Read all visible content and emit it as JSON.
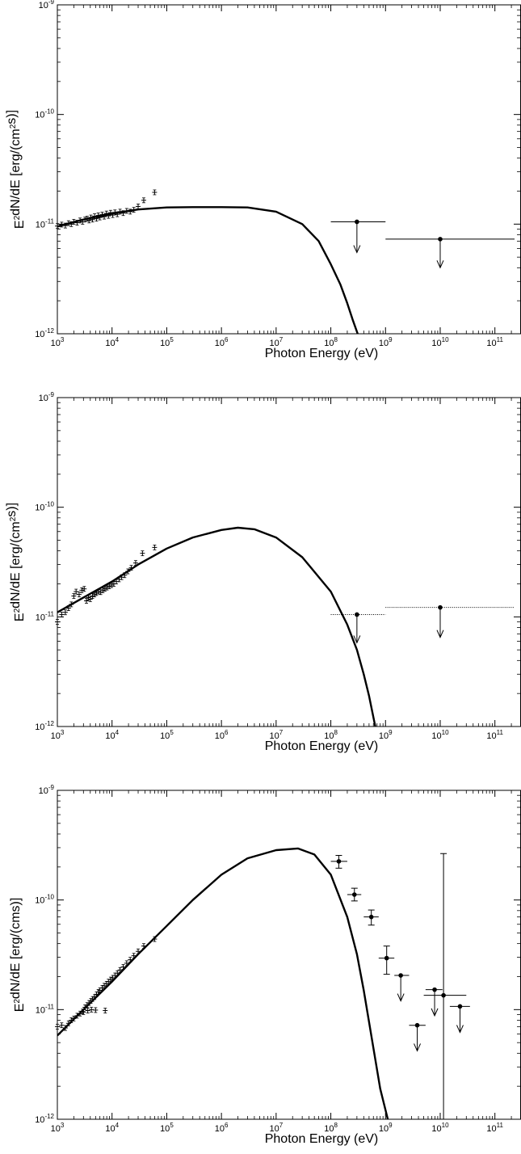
{
  "chart_data": [
    {
      "type": "scatter",
      "panel": 1,
      "xscale": "log",
      "yscale": "log",
      "xlim": [
        1000,
        300000000000
      ],
      "ylim": [
        1e-12,
        1e-09
      ],
      "xticks": [
        1000,
        10000,
        100000,
        1000000,
        10000000,
        100000000,
        1000000000,
        10000000000,
        100000000000
      ],
      "yticks": [
        1e-12,
        1e-11,
        1e-10,
        1e-09
      ],
      "xlabel": "Photon Energy (eV)",
      "ylabel": "E²dN/dE [erg/(cm²s)]",
      "model_curve": [
        [
          1000,
          9.5e-12
        ],
        [
          3000,
          1.1e-11
        ],
        [
          10000,
          1.25e-11
        ],
        [
          30000,
          1.36e-11
        ],
        [
          100000,
          1.42e-11
        ],
        [
          300000,
          1.43e-11
        ],
        [
          1000000,
          1.43e-11
        ],
        [
          3000000,
          1.42e-11
        ],
        [
          10000000,
          1.3e-11
        ],
        [
          30000000,
          1e-11
        ],
        [
          60000000,
          7e-12
        ],
        [
          100000000,
          4.3e-12
        ],
        [
          150000000,
          2.8e-12
        ],
        [
          200000000,
          1.9e-12
        ],
        [
          250000000,
          1.35e-12
        ],
        [
          310000000,
          1e-12
        ]
      ],
      "xray_points": [
        [
          1000,
          9.6e-12
        ],
        [
          1200,
          9.9e-12
        ],
        [
          1400,
          9.7e-12
        ],
        [
          1600,
          1.02e-11
        ],
        [
          1800,
          1e-11
        ],
        [
          2000,
          1.05e-11
        ],
        [
          2300,
          1.03e-11
        ],
        [
          2600,
          1.08e-11
        ],
        [
          2900,
          1.05e-11
        ],
        [
          3200,
          1.1e-11
        ],
        [
          3500,
          1.12e-11
        ],
        [
          3800,
          1.08e-11
        ],
        [
          4100,
          1.15e-11
        ],
        [
          4400,
          1.1e-11
        ],
        [
          4800,
          1.18e-11
        ],
        [
          5200,
          1.12e-11
        ],
        [
          5600,
          1.2e-11
        ],
        [
          6000,
          1.15e-11
        ],
        [
          6600,
          1.22e-11
        ],
        [
          7200,
          1.17e-11
        ],
        [
          7900,
          1.25e-11
        ],
        [
          8600,
          1.19e-11
        ],
        [
          9400,
          1.27e-11
        ],
        [
          10300,
          1.21e-11
        ],
        [
          11300,
          1.28e-11
        ],
        [
          12500,
          1.23e-11
        ],
        [
          14000,
          1.3e-11
        ],
        [
          16000,
          1.26e-11
        ],
        [
          18500,
          1.32e-11
        ],
        [
          21500,
          1.3e-11
        ],
        [
          25000,
          1.35e-11
        ],
        [
          30000,
          1.45e-11
        ],
        [
          38000,
          1.65e-11
        ],
        [
          60000,
          1.95e-11
        ]
      ],
      "upper_limits": [
        {
          "x": 300000000,
          "y": 1.05e-11,
          "xerr": [
            100000000,
            1000000000
          ],
          "arrow_to": 5.5e-12,
          "line": "solid"
        },
        {
          "x": 10000000000,
          "y": 7.3e-12,
          "xerr": [
            1000000000,
            300000000000
          ],
          "arrow_to": 4e-12,
          "line": "solid"
        }
      ]
    },
    {
      "type": "scatter",
      "panel": 2,
      "xscale": "log",
      "yscale": "log",
      "xlim": [
        1000,
        300000000000
      ],
      "ylim": [
        1e-12,
        1e-09
      ],
      "xticks": [
        1000,
        10000,
        100000,
        1000000,
        10000000,
        100000000,
        1000000000,
        10000000000,
        100000000000
      ],
      "yticks": [
        1e-12,
        1e-11,
        1e-10,
        1e-09
      ],
      "xlabel": "Photon Energy (eV)",
      "ylabel": "E²dN/dE [erg/(cm²s)]",
      "model_curve": [
        [
          1000,
          1.1e-11
        ],
        [
          3000,
          1.5e-11
        ],
        [
          10000,
          2.1e-11
        ],
        [
          30000,
          3e-11
        ],
        [
          100000,
          4.2e-11
        ],
        [
          300000,
          5.3e-11
        ],
        [
          1000000,
          6.2e-11
        ],
        [
          2000000,
          6.5e-11
        ],
        [
          4000000,
          6.3e-11
        ],
        [
          10000000,
          5.3e-11
        ],
        [
          30000000,
          3.5e-11
        ],
        [
          100000000,
          1.7e-11
        ],
        [
          200000000,
          8.5e-12
        ],
        [
          300000000,
          5e-12
        ],
        [
          400000000,
          3e-12
        ],
        [
          500000000,
          1.9e-12
        ],
        [
          650000000,
          1e-12
        ]
      ],
      "xray_points": [
        [
          1000,
          9e-12
        ],
        [
          1200,
          1.05e-11
        ],
        [
          1400,
          1.1e-11
        ],
        [
          1600,
          1.2e-11
        ],
        [
          1800,
          1.3e-11
        ],
        [
          2000,
          1.55e-11
        ],
        [
          2200,
          1.7e-11
        ],
        [
          2500,
          1.6e-11
        ],
        [
          2800,
          1.75e-11
        ],
        [
          3100,
          1.8e-11
        ],
        [
          3400,
          1.4e-11
        ],
        [
          3700,
          1.5e-11
        ],
        [
          4000,
          1.45e-11
        ],
        [
          4400,
          1.55e-11
        ],
        [
          4800,
          1.6e-11
        ],
        [
          5200,
          1.65e-11
        ],
        [
          5700,
          1.7e-11
        ],
        [
          6200,
          1.68e-11
        ],
        [
          6800,
          1.75e-11
        ],
        [
          7400,
          1.8e-11
        ],
        [
          8100,
          1.85e-11
        ],
        [
          8900,
          1.9e-11
        ],
        [
          9800,
          1.95e-11
        ],
        [
          10800,
          2e-11
        ],
        [
          12000,
          2.1e-11
        ],
        [
          13500,
          2.2e-11
        ],
        [
          15000,
          2.3e-11
        ],
        [
          17000,
          2.4e-11
        ],
        [
          19500,
          2.6e-11
        ],
        [
          22500,
          2.8e-11
        ],
        [
          27000,
          3.1e-11
        ],
        [
          36000,
          3.8e-11
        ],
        [
          60000,
          4.3e-11
        ]
      ],
      "upper_limits": [
        {
          "x": 300000000,
          "y": 1.05e-11,
          "xerr": [
            100000000,
            1000000000
          ],
          "arrow_to": 5.8e-12,
          "line": "dotted"
        },
        {
          "x": 10000000000,
          "y": 1.22e-11,
          "xerr": [
            1000000000,
            300000000000
          ],
          "arrow_to": 6.5e-12,
          "line": "dotted"
        }
      ]
    },
    {
      "type": "scatter",
      "panel": 3,
      "xscale": "log",
      "yscale": "log",
      "xlim": [
        1000,
        300000000000
      ],
      "ylim": [
        1e-12,
        1e-09
      ],
      "xticks": [
        1000,
        10000,
        100000,
        1000000,
        10000000,
        100000000,
        1000000000,
        10000000000,
        100000000000
      ],
      "yticks": [
        1e-12,
        1e-11,
        1e-10,
        1e-09
      ],
      "xlabel": "Photon Energy (eV)",
      "ylabel": "E²dN/dE [erg/(cms)]",
      "model_curve": [
        [
          1000,
          5.8e-12
        ],
        [
          3000,
          1e-11
        ],
        [
          10000,
          1.8e-11
        ],
        [
          30000,
          3.2e-11
        ],
        [
          100000,
          5.8e-11
        ],
        [
          300000,
          1e-10
        ],
        [
          1000000,
          1.7e-10
        ],
        [
          3000000,
          2.4e-10
        ],
        [
          10000000,
          2.85e-10
        ],
        [
          25000000,
          2.95e-10
        ],
        [
          50000000,
          2.6e-10
        ],
        [
          100000000,
          1.7e-10
        ],
        [
          200000000,
          7e-11
        ],
        [
          300000000,
          3.2e-11
        ],
        [
          400000000,
          1.5e-11
        ],
        [
          600000000,
          4.5e-12
        ],
        [
          800000000,
          1.9e-12
        ],
        [
          1100000000,
          1e-12
        ]
      ],
      "xray_points": [
        [
          1000,
          7e-12
        ],
        [
          1200,
          7.2e-12
        ],
        [
          1400,
          6.8e-12
        ],
        [
          1600,
          7.5e-12
        ],
        [
          1800,
          8e-12
        ],
        [
          2000,
          8.3e-12
        ],
        [
          2300,
          8.8e-12
        ],
        [
          2600,
          9.2e-12
        ],
        [
          2900,
          9.6e-12
        ],
        [
          3200,
          1.05e-11
        ],
        [
          3500,
          1.1e-11
        ],
        [
          3800,
          1.15e-11
        ],
        [
          4100,
          1.2e-11
        ],
        [
          4400,
          1.25e-11
        ],
        [
          4800,
          1.3e-11
        ],
        [
          5200,
          1.38e-11
        ],
        [
          5600,
          1.45e-11
        ],
        [
          6000,
          1.5e-11
        ],
        [
          6600,
          1.58e-11
        ],
        [
          7200,
          1.65e-11
        ],
        [
          7900,
          1.72e-11
        ],
        [
          8600,
          1.8e-11
        ],
        [
          9400,
          1.88e-11
        ],
        [
          10300,
          1.95e-11
        ],
        [
          11300,
          2.05e-11
        ],
        [
          12500,
          2.15e-11
        ],
        [
          14000,
          2.3e-11
        ],
        [
          16000,
          2.45e-11
        ],
        [
          18500,
          2.65e-11
        ],
        [
          21500,
          2.85e-11
        ],
        [
          25000,
          3.1e-11
        ],
        [
          30000,
          3.4e-11
        ],
        [
          38000,
          3.8e-11
        ],
        [
          60000,
          4.4e-11
        ],
        [
          3000,
          9.5e-12
        ],
        [
          3600,
          9.8e-12
        ],
        [
          4200,
          1e-11
        ],
        [
          5000,
          9.9e-12
        ],
        [
          7500,
          9.8e-12
        ]
      ],
      "gamma_points": [
        {
          "x": 140000000,
          "y": 2.25e-10,
          "xerr": [
            100000000,
            200000000
          ],
          "yerr": [
            1.95e-10,
            2.55e-10
          ]
        },
        {
          "x": 270000000,
          "y": 1.12e-10,
          "xerr": [
            200000000,
            360000000
          ],
          "yerr": [
            9.8e-11,
            1.28e-10
          ]
        },
        {
          "x": 550000000,
          "y": 7e-11,
          "xerr": [
            400000000,
            750000000
          ],
          "yerr": [
            5.9e-11,
            8.1e-11
          ]
        },
        {
          "x": 1050000000,
          "y": 2.95e-11,
          "xerr": [
            750000000,
            1450000000
          ],
          "yerr": [
            2.1e-11,
            3.8e-11
          ]
        },
        {
          "x": 11500000000,
          "y": 1.35e-11,
          "xerr": [
            5000000000,
            30000000000
          ],
          "yerr": [
            1e-12,
            2.65e-10
          ]
        }
      ],
      "upper_limits": [
        {
          "x": 1900000000,
          "y": 2.05e-11,
          "xerr": [
            1450000000,
            2700000000
          ],
          "arrow_to": 1.2e-11,
          "line": "solid"
        },
        {
          "x": 3800000000,
          "y": 7.2e-12,
          "xerr": [
            2700000000,
            5400000000
          ],
          "arrow_to": 4.2e-12,
          "line": "solid"
        },
        {
          "x": 7900000000,
          "y": 1.52e-11,
          "xerr": [
            5400000000,
            11000000000
          ],
          "arrow_to": 8.8e-12,
          "line": "solid"
        },
        {
          "x": 23000000000,
          "y": 1.07e-11,
          "xerr": [
            15000000000,
            35000000000
          ],
          "arrow_to": 6.2e-12,
          "line": "solid"
        }
      ]
    }
  ]
}
